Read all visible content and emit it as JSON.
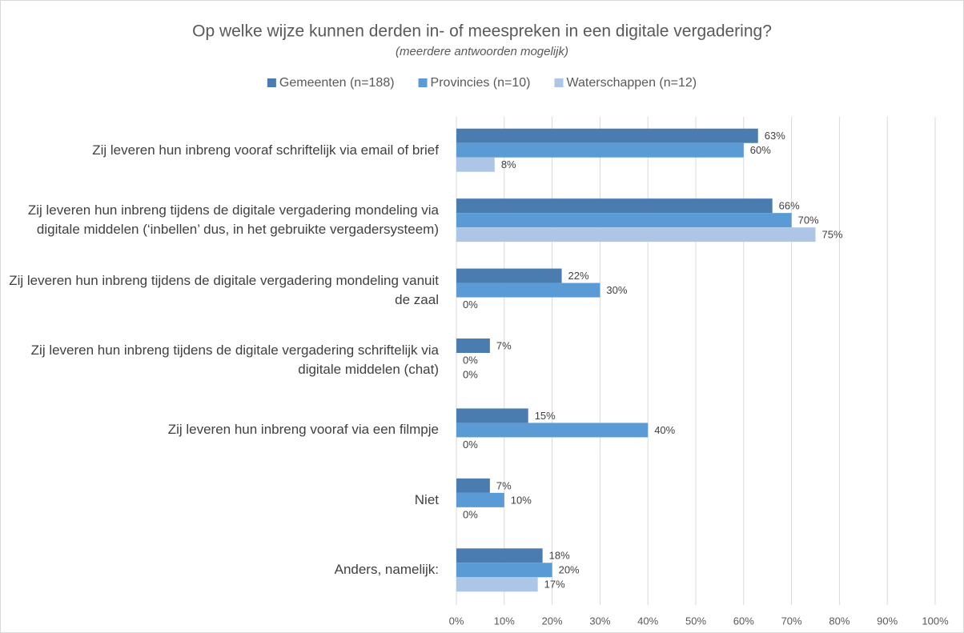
{
  "chart_data": {
    "type": "hbar",
    "title": "Op welke wijze kunnen derden in- of meespreken in een digitale vergadering?",
    "subtitle": "(meerdere antwoorden mogelijk)",
    "categories": [
      "Zij leveren hun inbreng vooraf schriftelijk via email of brief",
      "Zij leveren hun inbreng tijdens de digitale vergadering mondeling via digitale middelen (‘inbellen’ dus, in het gebruikte vergadersysteem)",
      "Zij leveren hun inbreng tijdens de digitale vergadering mondeling vanuit de zaal",
      "Zij leveren hun inbreng tijdens de digitale vergadering schriftelijk via digitale middelen (chat)",
      "Zij leveren hun inbreng vooraf via een filmpje",
      "Niet",
      "Anders, namelijk:"
    ],
    "series": [
      {
        "name": "Gemeenten (n=188)",
        "color": "#4a7cb0",
        "values": [
          63,
          66,
          22,
          7,
          15,
          7,
          18
        ],
        "value_labels": [
          "63%",
          "66%",
          "22%",
          "7%",
          "15%",
          "7%",
          "18%"
        ]
      },
      {
        "name": "Provincies (n=10)",
        "color": "#5b9bd5",
        "values": [
          60,
          70,
          30,
          0,
          40,
          10,
          20
        ],
        "value_labels": [
          "60%",
          "70%",
          "30%",
          "0%",
          "40%",
          "10%",
          "20%"
        ]
      },
      {
        "name": "Waterschappen (n=12)",
        "color": "#aec6e6",
        "values": [
          8,
          75,
          0,
          0,
          0,
          0,
          17
        ],
        "value_labels": [
          "8%",
          "75%",
          "0%",
          "0%",
          "0%",
          "0%",
          "17%"
        ]
      }
    ],
    "xlim": [
      0,
      100
    ],
    "xticks": [
      {
        "value": 0,
        "label": "0%"
      },
      {
        "value": 10,
        "label": "10%"
      },
      {
        "value": 20,
        "label": "20%"
      },
      {
        "value": 30,
        "label": "30%"
      },
      {
        "value": 40,
        "label": "40%"
      },
      {
        "value": 50,
        "label": "50%"
      },
      {
        "value": 60,
        "label": "60%"
      },
      {
        "value": 70,
        "label": "70%"
      },
      {
        "value": 80,
        "label": "80%"
      },
      {
        "value": 90,
        "label": "90%"
      },
      {
        "value": 100,
        "label": "100%"
      }
    ],
    "grid": true,
    "legend": "top"
  }
}
